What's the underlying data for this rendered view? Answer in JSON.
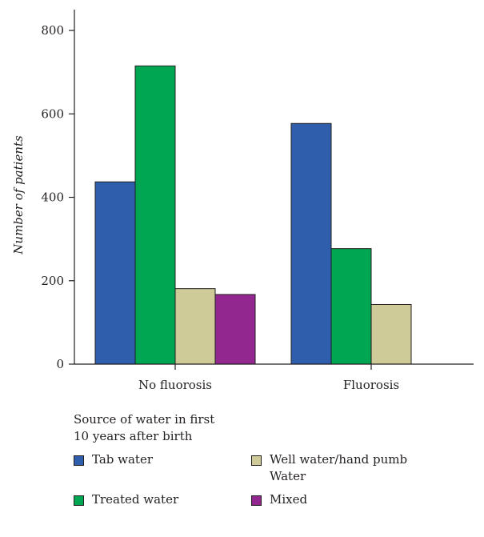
{
  "chart_data": {
    "type": "bar",
    "categories": [
      "No fluorosis",
      "Fluorosis"
    ],
    "series": [
      {
        "name": "Tab water",
        "values": [
          437,
          577
        ],
        "color": "#2e5eac"
      },
      {
        "name": "Treated water",
        "values": [
          715,
          277
        ],
        "color": "#00a651"
      },
      {
        "name": "Well water/hand pumb Water",
        "values": [
          181,
          143
        ],
        "color": "#cfcb98"
      },
      {
        "name": "Mixed",
        "values": [
          167,
          null
        ],
        "color": "#92278f"
      }
    ],
    "ylabel": "Number of patients",
    "xlabel": "",
    "ylim": [
      0,
      850
    ],
    "yticks": [
      0,
      200,
      400,
      600,
      800
    ],
    "legend": {
      "title": "Source of water in first 10 years after birth",
      "placement": "bottom-left"
    }
  }
}
